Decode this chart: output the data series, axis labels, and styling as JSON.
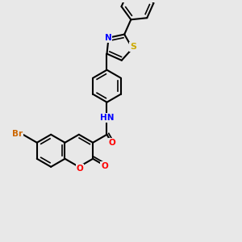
{
  "background_color": "#e8e8e8",
  "bond_color": "#000000",
  "bond_width": 1.5,
  "atom_colors": {
    "O": "#ff0000",
    "N": "#0000ff",
    "S": "#ccaa00",
    "Br": "#cc6600",
    "C": "#000000"
  },
  "font_size": 7.5
}
